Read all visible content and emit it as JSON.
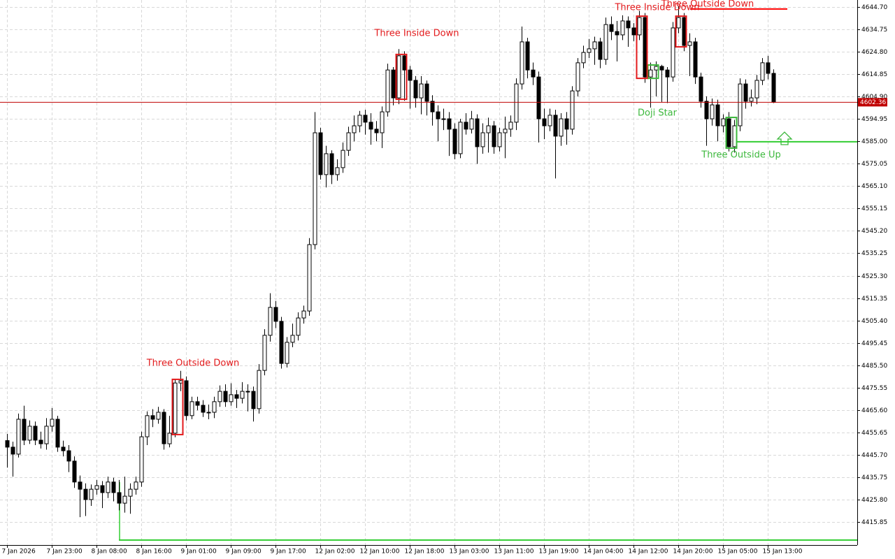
{
  "chart_data": {
    "type": "candlestick",
    "categories": [
      "7 Jan 2026",
      null,
      null,
      null,
      null,
      null,
      null,
      null,
      "7 Jan 23:00",
      null,
      null,
      null,
      null,
      null,
      null,
      null,
      "8 Jan 08:00",
      null,
      null,
      null,
      null,
      null,
      null,
      null,
      "8 Jan 16:00",
      null,
      null,
      null,
      null,
      null,
      null,
      null,
      "9 Jan 01:00",
      null,
      null,
      null,
      null,
      null,
      null,
      null,
      "9 Jan 09:00",
      null,
      null,
      null,
      null,
      null,
      null,
      null,
      "9 Jan 17:00",
      null,
      null,
      null,
      null,
      null,
      null,
      null,
      "12 Jan 02:00",
      null,
      null,
      null,
      null,
      null,
      null,
      null,
      "12 Jan 10:00",
      null,
      null,
      null,
      null,
      null,
      null,
      null,
      "12 Jan 18:00",
      null,
      null,
      null,
      null,
      null,
      null,
      null,
      "13 Jan 03:00",
      null,
      null,
      null,
      null,
      null,
      null,
      null,
      "13 Jan 11:00",
      null,
      null,
      null,
      null,
      null,
      null,
      null,
      "13 Jan 19:00",
      null,
      null,
      null,
      null,
      null,
      null,
      null,
      "14 Jan 04:00",
      null,
      null,
      null,
      null,
      null,
      null,
      null,
      "14 Jan 12:00",
      null,
      null,
      null,
      null,
      null,
      null,
      null,
      "14 Jan 20:00",
      null,
      null,
      null,
      null,
      null,
      null,
      null,
      "15 Jan 05:00",
      null,
      null,
      null,
      null,
      null,
      null,
      null,
      "15 Jan 13:00",
      null
    ],
    "ohlc": [
      [
        4452.0,
        4455.0,
        4440.0,
        4449.1
      ],
      [
        4449.1,
        4451.5,
        4436.0,
        4446.0
      ],
      [
        4446.0,
        4464.0,
        4444.5,
        4461.5
      ],
      [
        4461.5,
        4467.5,
        4450.0,
        4452.2
      ],
      [
        4452.2,
        4461.0,
        4450.5,
        4458.4
      ],
      [
        4458.4,
        4460.5,
        4450.0,
        4452.2
      ],
      [
        4452.2,
        4456.0,
        4448.5,
        4450.6
      ],
      [
        4450.6,
        4462.0,
        4448.0,
        4458.4
      ],
      [
        4458.4,
        4466.5,
        4456.0,
        4461.5
      ],
      [
        4461.5,
        4463.0,
        4447.0,
        4449.1
      ],
      [
        4449.1,
        4452.0,
        4445.0,
        4447.5
      ],
      [
        4447.5,
        4450.0,
        4438.0,
        4442.9
      ],
      [
        4442.9,
        4445.0,
        4431.0,
        4433.6
      ],
      [
        4433.6,
        4436.5,
        4418.0,
        4430.4
      ],
      [
        4430.4,
        4433.0,
        4418.5,
        4425.8
      ],
      [
        4425.8,
        4432.5,
        4423.0,
        4430.4
      ],
      [
        4430.4,
        4434.5,
        4428.0,
        4432.0
      ],
      [
        4432.0,
        4434.0,
        4422.0,
        4428.9
      ],
      [
        4428.9,
        4436.0,
        4426.5,
        4433.6
      ],
      [
        4433.6,
        4435.5,
        4425.0,
        4428.9
      ],
      [
        4428.9,
        4434.5,
        4421.0,
        4424.2
      ],
      [
        4424.2,
        4436.0,
        4420.0,
        4427.3
      ],
      [
        4427.3,
        4433.0,
        4419.5,
        4430.4
      ],
      [
        4430.4,
        4436.0,
        4428.0,
        4433.6
      ],
      [
        4433.6,
        4456.0,
        4431.5,
        4453.7
      ],
      [
        4453.7,
        4465.0,
        4450.0,
        4463.1
      ],
      [
        4463.1,
        4466.0,
        4458.0,
        4461.5
      ],
      [
        4461.5,
        4467.0,
        4459.5,
        4464.6
      ],
      [
        4464.6,
        4466.0,
        4448.0,
        4450.6
      ],
      [
        4450.6,
        4463.0,
        4449.0,
        4455.3
      ],
      [
        4455.3,
        4479.5,
        4453.5,
        4477.6
      ],
      [
        4477.6,
        4483.0,
        4474.0,
        4478.6
      ],
      [
        4478.6,
        4480.5,
        4461.0,
        4463.1
      ],
      [
        4463.1,
        4471.5,
        4461.5,
        4469.3
      ],
      [
        4469.3,
        4471.5,
        4465.5,
        4467.7
      ],
      [
        4467.7,
        4470.0,
        4462.5,
        4464.6
      ],
      [
        4464.6,
        4468.0,
        4461.5,
        4464.6
      ],
      [
        4464.6,
        4471.5,
        4462.0,
        4469.3
      ],
      [
        4469.3,
        4476.5,
        4467.0,
        4473.9
      ],
      [
        4473.9,
        4477.0,
        4467.0,
        4469.3
      ],
      [
        4469.3,
        4477.5,
        4467.5,
        4472.4
      ],
      [
        4472.4,
        4474.5,
        4466.5,
        4470.8
      ],
      [
        4470.8,
        4478.0,
        4468.5,
        4473.9
      ],
      [
        4473.9,
        4477.0,
        4465.0,
        4473.9
      ],
      [
        4473.9,
        4476.0,
        4460.5,
        4466.2
      ],
      [
        4466.2,
        4486.0,
        4464.0,
        4483.2
      ],
      [
        4483.2,
        4501.5,
        4481.0,
        4498.8
      ],
      [
        4498.8,
        4517.5,
        4496.0,
        4511.2
      ],
      [
        4511.2,
        4514.0,
        4502.0,
        4505.0
      ],
      [
        4505.0,
        4507.0,
        4484.0,
        4486.3
      ],
      [
        4486.3,
        4498.0,
        4484.5,
        4495.7
      ],
      [
        4495.7,
        4504.0,
        4493.5,
        4498.8
      ],
      [
        4498.8,
        4509.0,
        4496.5,
        4506.5
      ],
      [
        4506.5,
        4512.0,
        4504.0,
        4509.6
      ],
      [
        4509.6,
        4542.0,
        4507.5,
        4539.1
      ],
      [
        4539.1,
        4598.0,
        4537.0,
        4588.8
      ],
      [
        4588.8,
        4591.0,
        4568.0,
        4570.2
      ],
      [
        4570.2,
        4583.0,
        4564.5,
        4579.5
      ],
      [
        4579.5,
        4581.0,
        4566.0,
        4570.2
      ],
      [
        4570.2,
        4577.0,
        4567.5,
        4573.3
      ],
      [
        4573.3,
        4584.5,
        4571.0,
        4581.0
      ],
      [
        4581.0,
        4591.5,
        4578.5,
        4588.8
      ],
      [
        4588.8,
        4596.5,
        4585.0,
        4591.9
      ],
      [
        4591.9,
        4598.5,
        4589.0,
        4596.6
      ],
      [
        4596.6,
        4599.0,
        4588.0,
        4593.5
      ],
      [
        4593.5,
        4597.5,
        4583.5,
        4590.4
      ],
      [
        4590.4,
        4594.0,
        4585.0,
        4588.8
      ],
      [
        4588.8,
        4600.5,
        4582.0,
        4598.1
      ],
      [
        4598.1,
        4619.5,
        4596.0,
        4616.7
      ],
      [
        4616.7,
        4618.0,
        4601.0,
        4604.3
      ],
      [
        4604.3,
        4626.0,
        4601.5,
        4623.0
      ],
      [
        4623.0,
        4625.0,
        4603.0,
        4616.7
      ],
      [
        4616.7,
        4618.5,
        4599.5,
        4612.1
      ],
      [
        4612.1,
        4614.0,
        4600.0,
        4604.3
      ],
      [
        4604.3,
        4614.0,
        4597.0,
        4610.5
      ],
      [
        4610.5,
        4612.0,
        4596.5,
        4602.8
      ],
      [
        4602.8,
        4605.5,
        4592.0,
        4598.1
      ],
      [
        4598.1,
        4601.0,
        4585.0,
        4595.0
      ],
      [
        4595.0,
        4599.5,
        4590.0,
        4595.0
      ],
      [
        4595.0,
        4598.0,
        4578.5,
        4590.4
      ],
      [
        4590.4,
        4593.0,
        4577.0,
        4579.5
      ],
      [
        4579.5,
        4595.0,
        4577.5,
        4593.5
      ],
      [
        4593.5,
        4597.5,
        4588.0,
        4590.4
      ],
      [
        4590.4,
        4598.5,
        4588.5,
        4595.0
      ],
      [
        4595.0,
        4597.0,
        4575.0,
        4582.6
      ],
      [
        4582.6,
        4593.0,
        4579.5,
        4588.8
      ],
      [
        4588.8,
        4595.5,
        4580.0,
        4591.9
      ],
      [
        4591.9,
        4594.0,
        4579.5,
        4582.6
      ],
      [
        4582.6,
        4591.0,
        4580.5,
        4588.8
      ],
      [
        4588.8,
        4596.0,
        4577.5,
        4590.4
      ],
      [
        4590.4,
        4596.5,
        4587.0,
        4593.5
      ],
      [
        4593.5,
        4613.0,
        4590.0,
        4610.5
      ],
      [
        4610.5,
        4636.0,
        4608.0,
        4629.2
      ],
      [
        4629.2,
        4631.0,
        4613.0,
        4616.7
      ],
      [
        4616.7,
        4620.0,
        4610.0,
        4613.6
      ],
      [
        4613.6,
        4616.0,
        4584.5,
        4595.0
      ],
      [
        4595.0,
        4599.5,
        4586.0,
        4591.9
      ],
      [
        4591.9,
        4599.5,
        4589.5,
        4596.6
      ],
      [
        4596.6,
        4599.0,
        4568.5,
        4587.3
      ],
      [
        4587.3,
        4597.5,
        4583.0,
        4595.0
      ],
      [
        4595.0,
        4598.0,
        4583.5,
        4590.4
      ],
      [
        4590.4,
        4609.5,
        4588.0,
        4607.4
      ],
      [
        4607.4,
        4622.0,
        4605.0,
        4619.9
      ],
      [
        4619.9,
        4627.5,
        4617.5,
        4624.5
      ],
      [
        4624.5,
        4630.5,
        4622.0,
        4626.1
      ],
      [
        4626.1,
        4631.5,
        4619.0,
        4629.2
      ],
      [
        4629.2,
        4631.0,
        4617.5,
        4621.4
      ],
      [
        4621.4,
        4640.0,
        4619.0,
        4636.9
      ],
      [
        4636.9,
        4640.5,
        4630.0,
        4633.8
      ],
      [
        4633.8,
        4638.5,
        4620.5,
        4632.3
      ],
      [
        4632.3,
        4641.0,
        4630.0,
        4638.5
      ],
      [
        4638.5,
        4640.5,
        4627.0,
        4635.4
      ],
      [
        4635.4,
        4637.5,
        4629.5,
        4632.3
      ],
      [
        4632.3,
        4643.0,
        4630.0,
        4640.0
      ],
      [
        4640.0,
        4642.0,
        4611.0,
        4613.6
      ],
      [
        4613.6,
        4620.0,
        4600.0,
        4616.7
      ],
      [
        4616.7,
        4620.5,
        4605.0,
        4618.3
      ],
      [
        4618.3,
        4619.0,
        4602.5,
        4616.7
      ],
      [
        4616.7,
        4618.0,
        4602.0,
        4613.6
      ],
      [
        4613.6,
        4638.0,
        4611.5,
        4635.4
      ],
      [
        4635.4,
        4645.0,
        4633.0,
        4640.0
      ],
      [
        4640.0,
        4642.0,
        4625.0,
        4627.6
      ],
      [
        4627.6,
        4633.0,
        4614.0,
        4629.2
      ],
      [
        4629.2,
        4631.0,
        4610.5,
        4613.6
      ],
      [
        4613.6,
        4615.5,
        4600.0,
        4602.8
      ],
      [
        4602.8,
        4605.0,
        4583.0,
        4595.0
      ],
      [
        4595.0,
        4604.0,
        4592.0,
        4601.2
      ],
      [
        4601.2,
        4603.5,
        4585.0,
        4591.9
      ],
      [
        4591.9,
        4597.0,
        4589.0,
        4595.0
      ],
      [
        4595.0,
        4598.0,
        4580.5,
        4582.6
      ],
      [
        4582.6,
        4594.5,
        4580.0,
        4591.9
      ],
      [
        4591.9,
        4613.0,
        4589.5,
        4610.5
      ],
      [
        4610.5,
        4612.5,
        4599.5,
        4602.8
      ],
      [
        4602.8,
        4608.0,
        4600.5,
        4604.3
      ],
      [
        4604.3,
        4614.5,
        4601.5,
        4612.1
      ],
      [
        4612.1,
        4622.0,
        4610.0,
        4619.9
      ],
      [
        4619.9,
        4623.0,
        4612.5,
        4615.2
      ],
      [
        4615.2,
        4617.0,
        4602.0,
        4602.36
      ]
    ],
    "ylim": [
      4405.6,
      4647.8
    ],
    "yticks": [
      4415.85,
      {
        "value": 4425.8,
        "label": "4425.80"
      },
      4435.75,
      {
        "value": 4445.7,
        "label": "4445.70"
      },
      4455.65,
      {
        "value": 4465.6,
        "label": "4465.60"
      },
      4475.55,
      {
        "value": 4485.5,
        "label": "4485.50"
      },
      4495.45,
      {
        "value": 4505.4,
        "label": "4505.40"
      },
      4515.35,
      {
        "value": 4525.3,
        "label": "4525.30"
      },
      4535.25,
      {
        "value": 4545.2,
        "label": "4545.20"
      },
      4555.15,
      {
        "value": 4565.1,
        "label": "4565.10"
      },
      4575.05,
      {
        "value": 4585,
        "label": "4585.00"
      },
      4594.95,
      {
        "value": 4604.9,
        "label": "4604.90"
      },
      4614.85,
      {
        "value": 4624.8,
        "label": "4624.80"
      },
      4634.75,
      {
        "value": 4644.7,
        "label": "4644.70"
      }
    ],
    "grid": true,
    "last_price": 4602.36,
    "last_price_color": "#c00000",
    "levels": [
      {
        "color": "#32cd32",
        "value": 4584.8
      },
      {
        "color": "#ff0000",
        "value": 4643.8
      },
      {
        "color": "#32cd32",
        "value": 4407.8
      }
    ],
    "patterns": [
      {
        "text": "Three Outside Down",
        "color": "#e31a1c"
      },
      {
        "text": "Three Inside Down",
        "color": "#e31a1c"
      },
      {
        "text": "Doji Star",
        "color": "#3cb83c"
      },
      {
        "text": "Three Inside Down",
        "color": "#e31a1c"
      },
      {
        "text": "Three Outside Down",
        "color": "#e31a1c"
      },
      {
        "text": "Three Outside Up",
        "color": "#3cb83c"
      }
    ]
  }
}
